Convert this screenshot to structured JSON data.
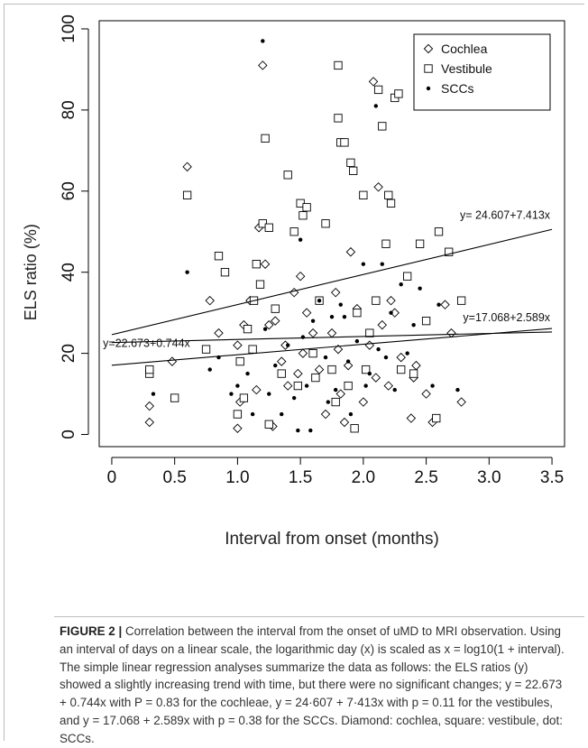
{
  "chart_data": {
    "type": "scatter",
    "xlabel": "Interval from onset (months)",
    "ylabel": "ELS ratio (%)",
    "xlim": [
      -0.1,
      3.6
    ],
    "ylim": [
      -3,
      102
    ],
    "xticks": [
      0,
      0.5,
      1.0,
      1.5,
      2.0,
      2.5,
      3.0,
      3.5
    ],
    "xtick_labels": [
      "0",
      "0.5",
      "1.0",
      "1.5",
      "2.0",
      "2.5",
      "3.0",
      "3.5"
    ],
    "yticks": [
      0,
      20,
      40,
      60,
      80,
      100
    ],
    "ytick_labels": [
      "0",
      "20",
      "40",
      "60",
      "80",
      "100"
    ],
    "legend_position": "top-right",
    "grid": false,
    "series": [
      {
        "name": "Cochlea",
        "marker": "diamond",
        "points": [
          [
            0.3,
            3
          ],
          [
            0.3,
            7
          ],
          [
            0.48,
            18
          ],
          [
            0.6,
            66
          ],
          [
            0.78,
            33
          ],
          [
            0.85,
            25
          ],
          [
            1.0,
            1.5
          ],
          [
            1.0,
            22
          ],
          [
            1.02,
            8
          ],
          [
            1.05,
            27
          ],
          [
            1.1,
            33
          ],
          [
            1.15,
            11
          ],
          [
            1.17,
            51
          ],
          [
            1.2,
            91
          ],
          [
            1.22,
            42
          ],
          [
            1.25,
            27
          ],
          [
            1.28,
            2
          ],
          [
            1.3,
            28
          ],
          [
            1.35,
            18
          ],
          [
            1.38,
            22
          ],
          [
            1.4,
            12
          ],
          [
            1.45,
            35
          ],
          [
            1.48,
            15
          ],
          [
            1.5,
            39
          ],
          [
            1.52,
            20
          ],
          [
            1.55,
            30
          ],
          [
            1.6,
            25
          ],
          [
            1.65,
            16
          ],
          [
            1.7,
            5
          ],
          [
            1.75,
            25
          ],
          [
            1.78,
            35
          ],
          [
            1.8,
            21
          ],
          [
            1.82,
            10
          ],
          [
            1.85,
            3
          ],
          [
            1.88,
            17
          ],
          [
            1.9,
            45
          ],
          [
            1.95,
            31
          ],
          [
            2.0,
            8
          ],
          [
            2.05,
            22
          ],
          [
            2.08,
            87
          ],
          [
            2.1,
            14
          ],
          [
            2.12,
            61
          ],
          [
            2.15,
            27
          ],
          [
            2.2,
            12
          ],
          [
            2.22,
            33
          ],
          [
            2.25,
            30
          ],
          [
            2.3,
            19
          ],
          [
            2.38,
            4
          ],
          [
            2.4,
            14
          ],
          [
            2.42,
            17
          ],
          [
            2.5,
            10
          ],
          [
            2.55,
            3
          ],
          [
            2.65,
            32
          ],
          [
            2.7,
            25
          ],
          [
            2.78,
            8
          ]
        ]
      },
      {
        "name": "Vestibule",
        "marker": "square",
        "points": [
          [
            0.3,
            15
          ],
          [
            0.3,
            16
          ],
          [
            0.5,
            9
          ],
          [
            0.6,
            59
          ],
          [
            0.75,
            21
          ],
          [
            0.85,
            44
          ],
          [
            0.9,
            40
          ],
          [
            1.0,
            5
          ],
          [
            1.02,
            18
          ],
          [
            1.05,
            9
          ],
          [
            1.08,
            26
          ],
          [
            1.12,
            21
          ],
          [
            1.13,
            33
          ],
          [
            1.15,
            42
          ],
          [
            1.18,
            37
          ],
          [
            1.2,
            52
          ],
          [
            1.22,
            73
          ],
          [
            1.25,
            51
          ],
          [
            1.25,
            2.5
          ],
          [
            1.3,
            31
          ],
          [
            1.35,
            15
          ],
          [
            1.4,
            64
          ],
          [
            1.45,
            50
          ],
          [
            1.48,
            12
          ],
          [
            1.5,
            57
          ],
          [
            1.52,
            54
          ],
          [
            1.55,
            56
          ],
          [
            1.6,
            20
          ],
          [
            1.62,
            14
          ],
          [
            1.65,
            33
          ],
          [
            1.7,
            52
          ],
          [
            1.75,
            16
          ],
          [
            1.78,
            8
          ],
          [
            1.8,
            91
          ],
          [
            1.8,
            78
          ],
          [
            1.82,
            72
          ],
          [
            1.85,
            72
          ],
          [
            1.88,
            12
          ],
          [
            1.9,
            67
          ],
          [
            1.92,
            65
          ],
          [
            1.93,
            1.5
          ],
          [
            1.95,
            30
          ],
          [
            2.0,
            59
          ],
          [
            2.02,
            16
          ],
          [
            2.05,
            25
          ],
          [
            2.1,
            33
          ],
          [
            2.12,
            85
          ],
          [
            2.15,
            76
          ],
          [
            2.18,
            47
          ],
          [
            2.2,
            59
          ],
          [
            2.22,
            57
          ],
          [
            2.25,
            83
          ],
          [
            2.28,
            84
          ],
          [
            2.3,
            16
          ],
          [
            2.35,
            39
          ],
          [
            2.4,
            15
          ],
          [
            2.45,
            47
          ],
          [
            2.5,
            28
          ],
          [
            2.58,
            4
          ],
          [
            2.6,
            50
          ],
          [
            2.68,
            45
          ],
          [
            2.78,
            33
          ]
        ]
      },
      {
        "name": "SCCs",
        "marker": "dot",
        "points": [
          [
            0.33,
            10
          ],
          [
            0.6,
            40
          ],
          [
            0.78,
            16
          ],
          [
            0.85,
            19
          ],
          [
            0.95,
            10
          ],
          [
            1.0,
            12
          ],
          [
            1.08,
            15
          ],
          [
            1.12,
            5
          ],
          [
            1.2,
            97
          ],
          [
            1.22,
            26
          ],
          [
            1.25,
            10
          ],
          [
            1.3,
            17
          ],
          [
            1.35,
            5
          ],
          [
            1.4,
            22
          ],
          [
            1.45,
            9
          ],
          [
            1.48,
            1
          ],
          [
            1.5,
            48
          ],
          [
            1.52,
            24
          ],
          [
            1.55,
            12
          ],
          [
            1.58,
            1
          ],
          [
            1.6,
            28
          ],
          [
            1.65,
            33
          ],
          [
            1.7,
            19
          ],
          [
            1.72,
            8
          ],
          [
            1.75,
            29
          ],
          [
            1.78,
            11
          ],
          [
            1.82,
            32
          ],
          [
            1.85,
            29
          ],
          [
            1.88,
            18
          ],
          [
            1.9,
            5
          ],
          [
            1.95,
            23
          ],
          [
            2.0,
            42
          ],
          [
            2.02,
            12
          ],
          [
            2.05,
            15
          ],
          [
            2.1,
            81
          ],
          [
            2.12,
            21
          ],
          [
            2.15,
            42
          ],
          [
            2.18,
            19
          ],
          [
            2.22,
            30
          ],
          [
            2.25,
            11
          ],
          [
            2.3,
            37
          ],
          [
            2.35,
            20
          ],
          [
            2.4,
            27
          ],
          [
            2.45,
            36
          ],
          [
            2.55,
            12
          ],
          [
            2.6,
            32
          ],
          [
            2.75,
            11
          ]
        ]
      }
    ],
    "regression_lines": [
      {
        "series": "Vestibule",
        "label": "y= 24.607+7.413x",
        "intercept": 24.607,
        "slope": 7.413,
        "x_range": [
          0,
          3.5
        ]
      },
      {
        "series": "SCCs",
        "label": "y=17.068+2.589x",
        "intercept": 17.068,
        "slope": 2.589,
        "x_range": [
          0,
          3.5
        ]
      },
      {
        "series": "Cochlea",
        "label": "y=22.673+0.744x",
        "intercept": 22.673,
        "slope": 0.744,
        "x_range": [
          0,
          3.5
        ]
      }
    ]
  },
  "caption": {
    "label": "FIGURE 2 |",
    "text": " Correlation between the interval from the onset of uMD to MRI observation. Using an interval of days on a linear scale, the logarithmic day (x) is scaled as x = log10(1 + interval). The simple linear regression analyses summarize the data as follows: the ELS ratios (y) showed a slightly increasing trend with time, but there were no significant changes; y = 22.673 + 0.744x with P = 0.83 for the cochleae, y = 24·607 + 7·413x with p = 0.11 for the vestibules, and y = 17.068 + 2.589x with p = 0.38 for the SCCs. Diamond: cochlea, square: vestibule, dot: SCCs."
  }
}
